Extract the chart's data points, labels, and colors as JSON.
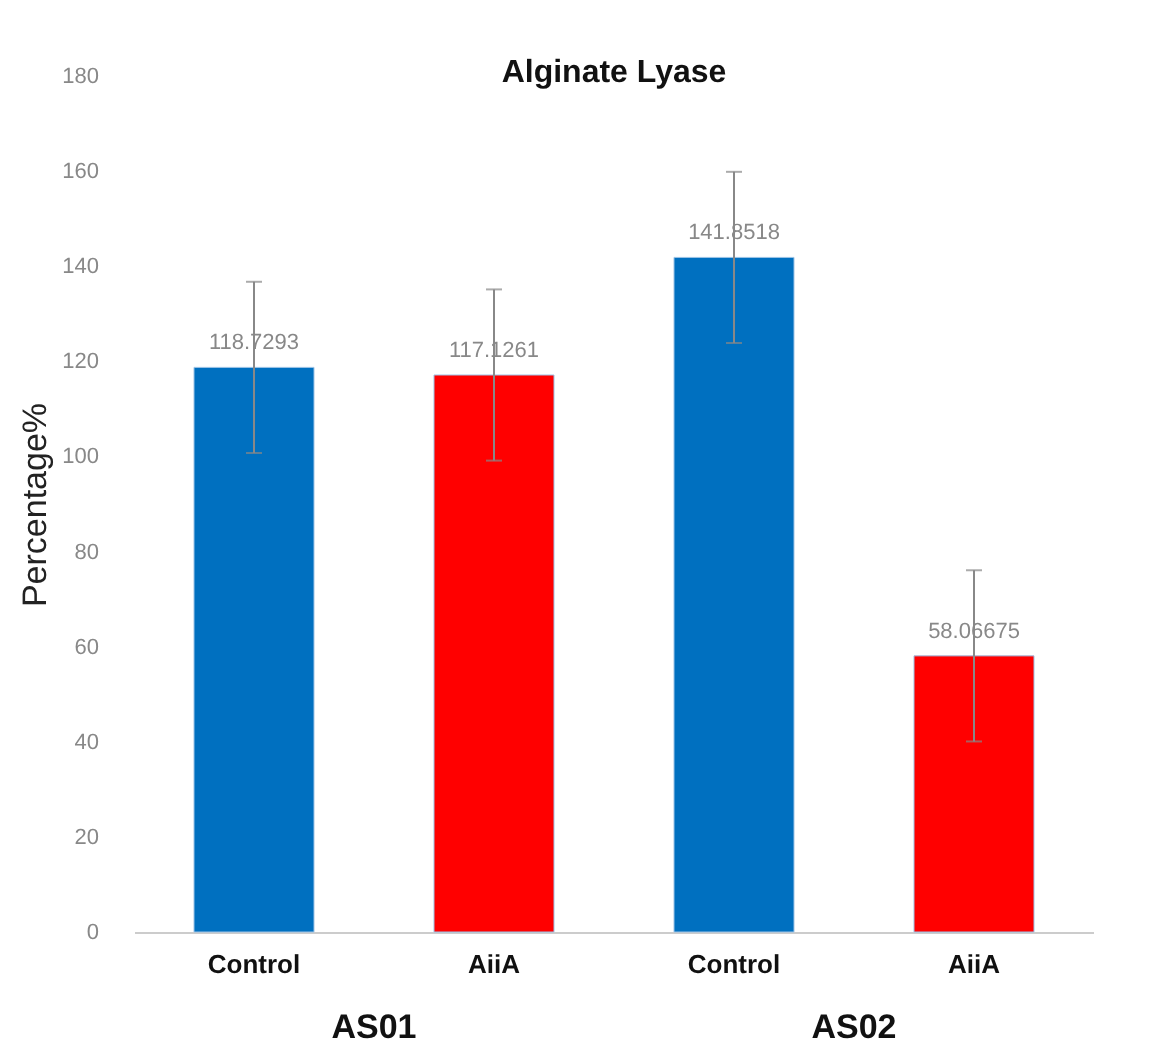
{
  "chart_data": {
    "type": "bar",
    "title": "Alginate Lyase",
    "ylabel": "Percentage%",
    "categories": [
      "Control",
      "AiiA",
      "Control",
      "AiiA"
    ],
    "values": [
      118.7293,
      117.1261,
      141.8518,
      58.06675
    ],
    "colors": [
      "#0070c0",
      "#ff0000",
      "#0070c0",
      "#ff0000"
    ],
    "errors": [
      18,
      18,
      18,
      18
    ],
    "data_labels": true,
    "annotations": [
      "AS01",
      "AS02"
    ],
    "ylim": [
      0,
      180
    ],
    "yticks": [
      0,
      20,
      40,
      60,
      80,
      100,
      120,
      140,
      160,
      180
    ],
    "grid": false
  }
}
